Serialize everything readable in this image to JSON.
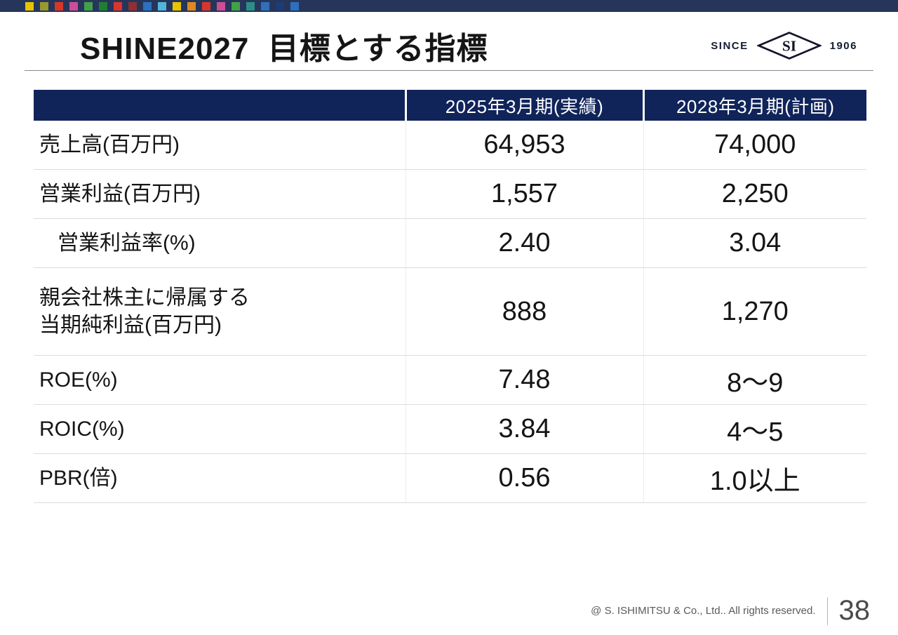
{
  "slide": {
    "title": "SHINE2027  目標とする指標"
  },
  "logo": {
    "since": "SINCE",
    "mark": "SI",
    "year": "1906"
  },
  "decor": {
    "top_bar_color": "#26365a",
    "dot_colors": [
      "#e8c400",
      "#97992c",
      "#d8362a",
      "#cf4d96",
      "#43a047",
      "#1e7e34",
      "#d8362a",
      "#8e3030",
      "#2e6fbe",
      "#53b4dc",
      "#e8c400",
      "#de8a20",
      "#d8362a",
      "#cf4d96",
      "#43a047",
      "#2a8f86",
      "#2e6fbe",
      "#1d3b74",
      "#2e6fbe"
    ]
  },
  "colors": {
    "table_header_bg": "#10245a",
    "title_text": "#151515",
    "row_border": "#dcdcdc"
  },
  "table": {
    "headers": [
      "",
      "2025年3月期(実績)",
      "2028年3月期(計画)"
    ],
    "rows": [
      {
        "label": "売上高(百万円)",
        "actual": "64,953",
        "plan": "74,000"
      },
      {
        "label": "営業利益(百万円)",
        "actual": "1,557",
        "plan": "2,250"
      },
      {
        "label": "営業利益率(%)",
        "actual": "2.40",
        "plan": "3.04"
      },
      {
        "label": "親会社株主に帰属する\n当期純利益(百万円)",
        "actual": "888",
        "plan": "1,270"
      },
      {
        "label": "ROE(%)",
        "actual": "7.48",
        "plan": "8～9"
      },
      {
        "label": "ROIC(%)",
        "actual": "3.84",
        "plan": "4～5"
      },
      {
        "label": "PBR(倍)",
        "actual": "0.56",
        "plan": "1.0以上"
      }
    ]
  },
  "footer": {
    "copyright": "@ S. ISHIMITSU & Co., Ltd.. All rights reserved.",
    "page_number": "38"
  }
}
